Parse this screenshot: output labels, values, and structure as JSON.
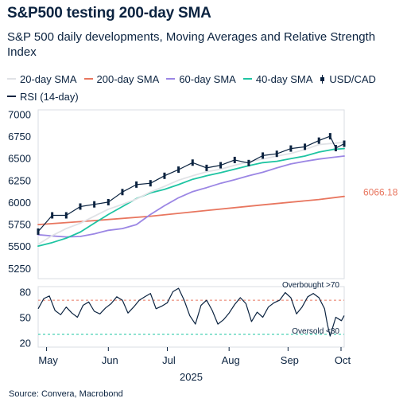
{
  "title": "S&P500 testing 200-day SMA",
  "subtitle": "S&P 500 daily developments, Moving Averages and Relative Strength Index",
  "source": "Source: Convera, Macrobond",
  "legend": [
    {
      "label": "20-day SMA",
      "color": "#e0e2e6",
      "kind": "line"
    },
    {
      "label": "200-day SMA",
      "color": "#e8765f",
      "kind": "line"
    },
    {
      "label": "60-day SMA",
      "color": "#9b86e4",
      "kind": "line"
    },
    {
      "label": "40-day SMA",
      "color": "#1ec4a2",
      "kind": "line"
    },
    {
      "label": "USD/CAD",
      "color": "#0b2340",
      "kind": "candle"
    },
    {
      "label": "RSI (14-day)",
      "color": "#0b2340",
      "kind": "line"
    }
  ],
  "chart_data": [
    {
      "type": "line",
      "panel": "price",
      "x_label": "2025",
      "x_ticks": [
        "May",
        "Jun",
        "Jul",
        "Aug",
        "Sep",
        "Oct"
      ],
      "x_range": [
        0,
        109
      ],
      "x_tick_positions": [
        3,
        25,
        46,
        68,
        89,
        110
      ],
      "ylim": [
        5130,
        7050
      ],
      "y_ticks": [
        5250,
        5500,
        5750,
        6000,
        6250,
        6500,
        6750,
        7000
      ],
      "grid": false,
      "series": [
        {
          "name": "200-day SMA",
          "color": "#e8765f",
          "x": [
            0,
            20,
            40,
            60,
            80,
            100,
            109
          ],
          "y": [
            5745,
            5790,
            5840,
            5905,
            5970,
            6030,
            6066
          ]
        },
        {
          "name": "60-day SMA",
          "color": "#9b86e4",
          "x": [
            0,
            5,
            10,
            15,
            20,
            25,
            30,
            35,
            40,
            45,
            50,
            55,
            60,
            65,
            70,
            75,
            80,
            85,
            90,
            95,
            100,
            105,
            109
          ],
          "y": [
            5630,
            5615,
            5605,
            5610,
            5640,
            5680,
            5700,
            5745,
            5860,
            5960,
            6050,
            6120,
            6165,
            6215,
            6255,
            6300,
            6340,
            6390,
            6435,
            6465,
            6490,
            6510,
            6525
          ]
        },
        {
          "name": "40-day SMA",
          "color": "#1ec4a2",
          "x": [
            0,
            5,
            10,
            15,
            20,
            25,
            30,
            35,
            40,
            45,
            50,
            55,
            60,
            65,
            70,
            75,
            80,
            85,
            90,
            95,
            100,
            105,
            109
          ],
          "y": [
            5500,
            5540,
            5590,
            5660,
            5760,
            5860,
            5950,
            6040,
            6105,
            6145,
            6200,
            6260,
            6300,
            6335,
            6375,
            6415,
            6450,
            6465,
            6495,
            6525,
            6570,
            6600,
            6610
          ]
        },
        {
          "name": "20-day SMA",
          "color": "#e0e2e6",
          "x": [
            0,
            5,
            10,
            15,
            20,
            25,
            30,
            35,
            40,
            45,
            50,
            55,
            60,
            65,
            70,
            75,
            80,
            85,
            90,
            95,
            100,
            105,
            109
          ],
          "y": [
            5520,
            5620,
            5700,
            5760,
            5840,
            5920,
            5975,
            6035,
            6115,
            6180,
            6250,
            6300,
            6345,
            6375,
            6420,
            6460,
            6490,
            6525,
            6555,
            6600,
            6655,
            6670,
            6680
          ]
        },
        {
          "name": "USD/CAD",
          "color": "#0b2340",
          "x": [
            0,
            5,
            10,
            15,
            20,
            25,
            30,
            35,
            40,
            45,
            50,
            55,
            60,
            65,
            70,
            75,
            80,
            85,
            90,
            95,
            100,
            104,
            106,
            109
          ],
          "y": [
            5665,
            5850,
            5850,
            5950,
            5975,
            6000,
            6115,
            6200,
            6215,
            6300,
            6370,
            6450,
            6390,
            6420,
            6480,
            6445,
            6530,
            6550,
            6610,
            6630,
            6700,
            6750,
            6615,
            6665
          ]
        }
      ],
      "annotations": [
        {
          "text": "6066.18",
          "y": 6066.18,
          "color": "#e8765f"
        }
      ]
    },
    {
      "type": "line",
      "panel": "rsi",
      "ylim": [
        15,
        86
      ],
      "y_ticks": [
        20,
        50,
        80
      ],
      "series": [
        {
          "name": "RSI (14-day)",
          "color": "#0b2340",
          "x": [
            0,
            2,
            4,
            6,
            8,
            10,
            12,
            14,
            16,
            18,
            20,
            22,
            24,
            26,
            28,
            30,
            32,
            34,
            36,
            38,
            40,
            42,
            44,
            46,
            48,
            50,
            52,
            54,
            56,
            58,
            60,
            62,
            64,
            66,
            68,
            70,
            72,
            74,
            76,
            78,
            80,
            82,
            84,
            86,
            88,
            90,
            92,
            94,
            96,
            98,
            100,
            102,
            103,
            104,
            106,
            108,
            109
          ],
          "y": [
            60,
            72,
            75,
            58,
            53,
            62,
            55,
            50,
            64,
            68,
            57,
            54,
            61,
            66,
            74,
            70,
            55,
            62,
            70,
            74,
            78,
            60,
            63,
            67,
            80,
            84,
            70,
            52,
            42,
            64,
            70,
            58,
            42,
            47,
            55,
            65,
            73,
            66,
            45,
            56,
            50,
            62,
            67,
            70,
            79,
            73,
            54,
            62,
            74,
            78,
            73,
            60,
            42,
            28,
            50,
            46,
            52
          ]
        }
      ],
      "reference_lines": [
        {
          "label": "Overbought >70",
          "value": 70,
          "color": "#e8765f"
        },
        {
          "label": "Oversold <30",
          "value": 30,
          "color": "#1ec4a2"
        }
      ]
    }
  ]
}
